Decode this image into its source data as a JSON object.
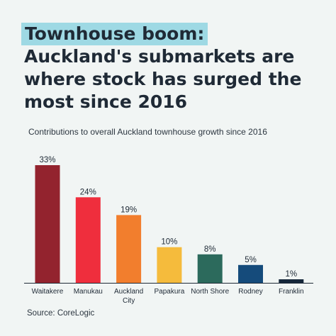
{
  "title": {
    "line1": "Townhouse boom:",
    "line2": "Auckland's submarkets are",
    "line3": "where stock has surged the",
    "line4": "most since 2016"
  },
  "subtitle": "Contributions to overall Auckland townhouse growth since 2016",
  "source": "Source: CoreLogic",
  "colors": {
    "background": "#f1f5f4",
    "highlight": "#9ed9e4",
    "text": "#1f2a36"
  },
  "chart_data": {
    "type": "bar",
    "title": "Contributions to overall Auckland townhouse growth since 2016",
    "categories": [
      "Waitakere",
      "Manukau",
      "Auckland City",
      "Papakura",
      "North Shore",
      "Rodney",
      "Franklin"
    ],
    "category_lines": [
      [
        "Waitakere"
      ],
      [
        "Manukau"
      ],
      [
        "Auckland",
        "City"
      ],
      [
        "Papakura"
      ],
      [
        "North Shore"
      ],
      [
        "Rodney"
      ],
      [
        "Franklin"
      ]
    ],
    "values": [
      33,
      24,
      19,
      10,
      8,
      5,
      1
    ],
    "labels": [
      "33%",
      "24%",
      "19%",
      "10%",
      "8%",
      "5%",
      "1%"
    ],
    "bar_colors": [
      "#93232e",
      "#ef2e3d",
      "#f27e2d",
      "#f5bb3c",
      "#2c6a5c",
      "#154b7b",
      "#15273a"
    ],
    "unit": "%",
    "ylim": [
      0,
      33
    ],
    "grid": false,
    "legend": "none"
  }
}
